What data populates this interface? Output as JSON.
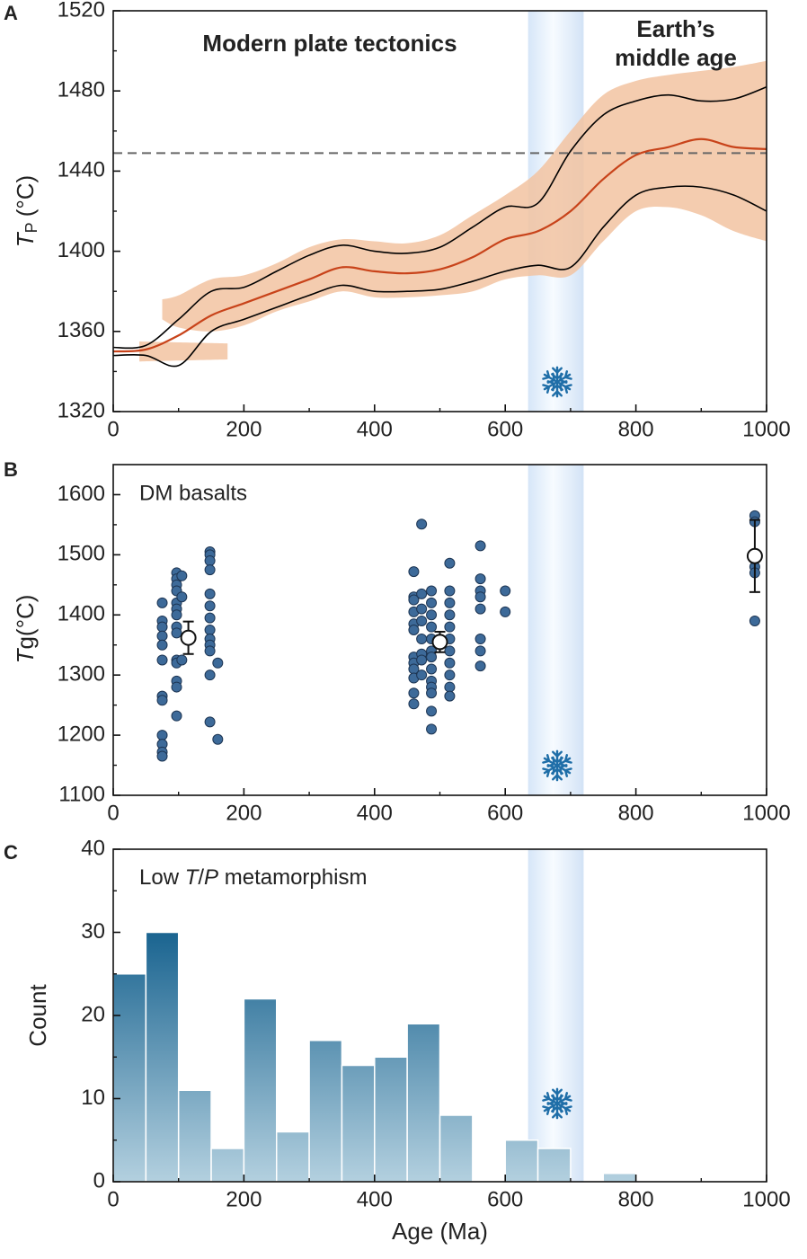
{
  "chart_data": [
    {
      "type": "line",
      "panel": "A",
      "annotations": [
        {
          "text": "Modern plate tectonics",
          "color": "#1e6b3a"
        },
        {
          "text": "Earth’s",
          "color": "#c8461c"
        },
        {
          "text": "middle age",
          "color": "#c8461c"
        }
      ],
      "ylabel": {
        "symbol": "T",
        "sub": "P",
        "unit": "(°C)"
      },
      "x": [
        0,
        50,
        100,
        150,
        200,
        250,
        300,
        350,
        400,
        450,
        500,
        550,
        600,
        650,
        700,
        750,
        800,
        850,
        900,
        950,
        1000
      ],
      "series": [
        {
          "color": "#c8431a",
          "values": [
            1350,
            1351,
            1358,
            1368,
            1374,
            1380,
            1386,
            1392,
            1390,
            1389,
            1391,
            1397,
            1406,
            1410,
            1420,
            1436,
            1448,
            1452,
            1456,
            1452,
            1451
          ]
        },
        {
          "color": "#000000",
          "values": [
            1352,
            1353,
            1366,
            1380,
            1382,
            1390,
            1398,
            1403,
            1400,
            1399,
            1402,
            1412,
            1422,
            1424,
            1450,
            1468,
            1475,
            1478,
            1475,
            1476,
            1482
          ]
        },
        {
          "color": "#000000",
          "values": [
            1348,
            1348,
            1343,
            1360,
            1366,
            1372,
            1378,
            1383,
            1380,
            1380,
            1381,
            1385,
            1390,
            1393,
            1392,
            1412,
            1428,
            1432,
            1432,
            1428,
            1420
          ]
        }
      ],
      "clouds": [
        {
          "color": "#f2c3a1",
          "x": [
            75,
            100,
            150,
            200,
            250,
            300,
            350,
            400,
            450,
            500,
            550,
            600,
            650,
            700,
            750,
            800,
            850,
            900,
            950,
            1000
          ],
          "upper": [
            1376,
            1378,
            1386,
            1388,
            1394,
            1402,
            1406,
            1405,
            1404,
            1408,
            1418,
            1428,
            1440,
            1460,
            1478,
            1485,
            1488,
            1490,
            1492,
            1495
          ],
          "lower": [
            1366,
            1362,
            1360,
            1363,
            1370,
            1375,
            1380,
            1377,
            1377,
            1378,
            1380,
            1386,
            1388,
            1388,
            1405,
            1420,
            1422,
            1418,
            1410,
            1405
          ]
        },
        {
          "color": "#f2c3a1",
          "x": [
            40,
            175
          ],
          "upper": [
            1355,
            1354
          ],
          "lower": [
            1345,
            1346
          ]
        }
      ],
      "reference_line": {
        "value": 1449,
        "color": "#666666"
      },
      "band": [
        635,
        720
      ],
      "xlim": [
        0,
        1000
      ],
      "xticks": [
        0,
        200,
        400,
        600,
        800,
        1000
      ],
      "xminorticks": [
        100,
        300,
        500,
        700,
        900
      ],
      "ylim": [
        1320,
        1520
      ],
      "yticks": [
        1320,
        1360,
        1400,
        1440,
        1480,
        1520
      ],
      "yminorticks": [
        1340,
        1380,
        1420,
        1460,
        1500
      ]
    },
    {
      "type": "scatter",
      "panel": "B",
      "annotations": [
        {
          "text": "DM basalts",
          "color": "#222222"
        }
      ],
      "ylabel": {
        "symbol": "T",
        "sub": "g",
        "unit": "(°C)"
      },
      "series": [
        {
          "color": "#3d6a99",
          "x": [
            75,
            75,
            75,
            75,
            75,
            75,
            75,
            75,
            75,
            75,
            75,
            75,
            97,
            97,
            97,
            97,
            97,
            97,
            97,
            97,
            97,
            97,
            97,
            97,
            97,
            97,
            105,
            105,
            105,
            148,
            148,
            148,
            148,
            148,
            148,
            148,
            148,
            148,
            148,
            148,
            148,
            148,
            160,
            160,
            460,
            460,
            460,
            460,
            460,
            460,
            460,
            460,
            460,
            460,
            460,
            460,
            472,
            472,
            472,
            472,
            472,
            472,
            472,
            472,
            487,
            487,
            487,
            487,
            487,
            487,
            487,
            487,
            487,
            487,
            487,
            487,
            487,
            515,
            515,
            515,
            515,
            515,
            515,
            515,
            515,
            515,
            515,
            515,
            562,
            562,
            562,
            562,
            562,
            562,
            562,
            562,
            600,
            600,
            982,
            982,
            982,
            982,
            982
          ],
          "values": [
            1420,
            1390,
            1380,
            1365,
            1350,
            1325,
            1265,
            1258,
            1200,
            1185,
            1172,
            1165,
            1470,
            1460,
            1450,
            1440,
            1420,
            1410,
            1400,
            1380,
            1370,
            1325,
            1320,
            1290,
            1280,
            1232,
            1465,
            1430,
            1325,
            1505,
            1500,
            1490,
            1475,
            1435,
            1415,
            1395,
            1375,
            1360,
            1350,
            1340,
            1300,
            1222,
            1320,
            1193,
            1472,
            1430,
            1425,
            1405,
            1385,
            1375,
            1330,
            1320,
            1310,
            1295,
            1270,
            1252,
            1551,
            1435,
            1410,
            1390,
            1360,
            1335,
            1325,
            1300,
            1440,
            1420,
            1400,
            1380,
            1360,
            1340,
            1330,
            1310,
            1290,
            1280,
            1270,
            1240,
            1210,
            1486,
            1440,
            1420,
            1400,
            1380,
            1360,
            1340,
            1320,
            1300,
            1280,
            1265,
            1515,
            1460,
            1440,
            1430,
            1410,
            1360,
            1340,
            1315,
            1440,
            1405,
            1565,
            1555,
            1480,
            1470,
            1390
          ]
        }
      ],
      "means": {
        "x": [
          115,
          500,
          982
        ],
        "values": [
          1362,
          1355,
          1498
        ],
        "errors": [
          27,
          17,
          60
        ]
      },
      "band": [
        635,
        720
      ],
      "xlim": [
        0,
        1000
      ],
      "xticks": [
        0,
        200,
        400,
        600,
        800,
        1000
      ],
      "xminorticks": [
        100,
        300,
        500,
        700,
        900
      ],
      "ylim": [
        1100,
        1650
      ],
      "yticks": [
        1100,
        1200,
        1300,
        1400,
        1500,
        1600
      ],
      "yminorticks": [
        1150,
        1250,
        1350,
        1450,
        1550
      ]
    },
    {
      "type": "histogram",
      "panel": "C",
      "annotations": [
        {
          "parts": [
            "Low ",
            "T",
            "/",
            "P",
            " metamorphism"
          ],
          "color": "#222222"
        }
      ],
      "ylabel": "Count",
      "xlabel": "Age (Ma)",
      "bins": [
        0,
        50,
        100,
        150,
        200,
        250,
        300,
        350,
        400,
        450,
        500,
        550,
        600,
        650,
        700,
        750,
        800,
        850,
        900,
        950,
        1000
      ],
      "values": [
        25,
        30,
        11,
        4,
        22,
        6,
        17,
        14,
        15,
        19,
        8,
        0,
        5,
        4,
        0,
        1,
        0,
        0,
        0,
        0
      ],
      "colors": [
        "#1a6490",
        "#b3d0df"
      ],
      "band": [
        635,
        720
      ],
      "xlim": [
        0,
        1000
      ],
      "xticks": [
        0,
        200,
        400,
        600,
        800,
        1000
      ],
      "xminorticks": [
        100,
        300,
        500,
        700,
        900
      ],
      "ylim": [
        0,
        40
      ],
      "yticks": [
        0,
        10,
        20,
        30,
        40
      ],
      "yminorticks": [
        5,
        15,
        25,
        35
      ]
    }
  ]
}
